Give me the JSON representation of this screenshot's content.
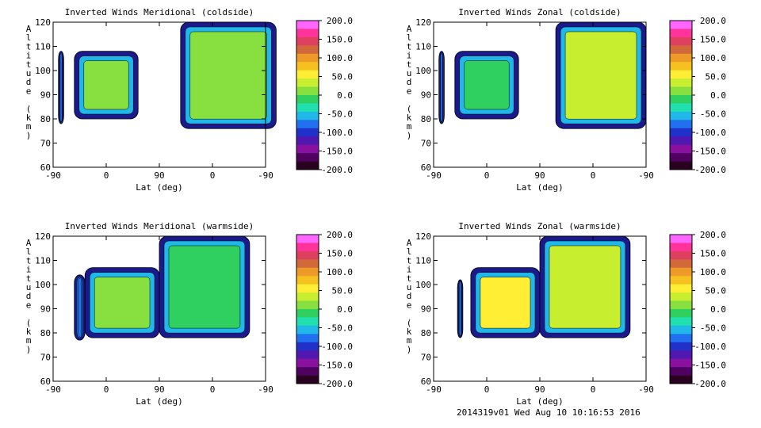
{
  "chart_data": [
    {
      "type": "heatmap",
      "title": "Inverted Winds Meridional (coldside)",
      "xlabel": "Lat (deg)",
      "ylabel": "Altitude (km)",
      "xticks": [
        "-90",
        "0",
        "90",
        "0",
        "-90"
      ],
      "yticks": [
        60,
        70,
        80,
        90,
        100,
        110,
        120
      ],
      "ylim": [
        60,
        120
      ],
      "clim": [
        -200,
        200
      ],
      "segments": [
        {
          "x": [
            -0.9,
            -0.8
          ],
          "y": [
            78,
            108
          ],
          "level": -70
        },
        {
          "x": [
            -0.6,
            0.6
          ],
          "y": [
            80,
            108
          ],
          "level": 10
        },
        {
          "x": [
            1.4,
            3.2
          ],
          "y": [
            76,
            120
          ],
          "level": 20
        }
      ]
    },
    {
      "type": "heatmap",
      "title": "Inverted Winds Zonal (coldside)",
      "xlabel": "Lat (deg)",
      "ylabel": "Altitude (km)",
      "xticks": [
        "-90",
        "0",
        "90",
        "0",
        "-90"
      ],
      "yticks": [
        60,
        70,
        80,
        90,
        100,
        110,
        120
      ],
      "ylim": [
        60,
        120
      ],
      "clim": [
        -200,
        200
      ],
      "segments": [
        {
          "x": [
            -0.9,
            -0.8
          ],
          "y": [
            78,
            108
          ],
          "level": -80
        },
        {
          "x": [
            -0.6,
            0.6
          ],
          "y": [
            80,
            108
          ],
          "level": -20
        },
        {
          "x": [
            1.3,
            3.0
          ],
          "y": [
            76,
            120
          ],
          "level": 30
        }
      ]
    },
    {
      "type": "heatmap",
      "title": "Inverted Winds Meridional (warmside)",
      "xlabel": "Lat (deg)",
      "ylabel": "Altitude (km)",
      "xticks": [
        "-90",
        "0",
        "90",
        "0",
        "-90"
      ],
      "yticks": [
        60,
        70,
        80,
        90,
        100,
        110,
        120
      ],
      "ylim": [
        60,
        120
      ],
      "clim": [
        -200,
        200
      ],
      "segments": [
        {
          "x": [
            -0.6,
            -0.4
          ],
          "y": [
            77,
            104
          ],
          "level": -80
        },
        {
          "x": [
            -0.4,
            1.0
          ],
          "y": [
            78,
            107
          ],
          "level": 20
        },
        {
          "x": [
            1.0,
            2.7
          ],
          "y": [
            78,
            120
          ],
          "level": 0
        }
      ]
    },
    {
      "type": "heatmap",
      "title": "Inverted Winds Zonal (warmside)",
      "xlabel": "Lat (deg)",
      "ylabel": "Altitude (km)",
      "xticks": [
        "-90",
        "0",
        "90",
        "0",
        "-90"
      ],
      "yticks": [
        60,
        70,
        80,
        90,
        100,
        110,
        120
      ],
      "ylim": [
        60,
        120
      ],
      "clim": [
        -200,
        200
      ],
      "segments": [
        {
          "x": [
            -0.55,
            -0.45
          ],
          "y": [
            78,
            102
          ],
          "level": -80
        },
        {
          "x": [
            -0.3,
            1.0
          ],
          "y": [
            78,
            107
          ],
          "level": 60
        },
        {
          "x": [
            1.0,
            2.7
          ],
          "y": [
            78,
            120
          ],
          "level": 30
        }
      ]
    }
  ],
  "colorbar": {
    "labels": [
      "200.0",
      "150.0",
      "100.0",
      "50.0",
      "0.0",
      "-50.0",
      "-100.0",
      "-150.0",
      "-200.0"
    ],
    "colors": [
      "#ff66ff",
      "#ff3399",
      "#e04060",
      "#d2693a",
      "#ee9a28",
      "#f5c020",
      "#ffee33",
      "#c8ee30",
      "#88e040",
      "#30d060",
      "#20e0b0",
      "#20b8e8",
      "#2070f0",
      "#2030c8",
      "#5018b0",
      "#8a10a0",
      "#500060",
      "#2a0020"
    ]
  },
  "footer": "2014319v01 Wed Aug 10 10:16:53 2016"
}
